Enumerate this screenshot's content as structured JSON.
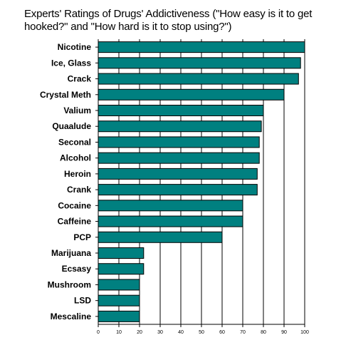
{
  "chart_data": {
    "type": "bar",
    "orientation": "horizontal",
    "title": "Experts' Ratings of Drugs' Addictiveness (\"How easy is it to get hooked?\" and \"How hard is it to stop using?\")",
    "xlabel": "",
    "ylabel": "",
    "categories": [
      "Nicotine",
      "Ice, Glass",
      "Crack",
      "Crystal Meth",
      "Valium",
      "Quaalude",
      "Seconal",
      "Alcohol",
      "Heroin",
      "Crank",
      "Cocaine",
      "Caffeine",
      "PCP",
      "Marijuana",
      "Ecsasy",
      "Mushroom",
      "LSD",
      "Mescaline"
    ],
    "values": [
      100,
      98,
      97,
      90,
      80,
      79,
      78,
      78,
      77,
      77,
      70,
      70,
      60,
      22,
      22,
      20,
      20,
      20
    ],
    "xlim": [
      0,
      100
    ],
    "xticks": [
      "0",
      "10",
      "20",
      "30",
      "40",
      "50",
      "60",
      "70",
      "80",
      "90",
      "100"
    ],
    "grid": true,
    "legend": "none",
    "bar_color": "#008080"
  }
}
